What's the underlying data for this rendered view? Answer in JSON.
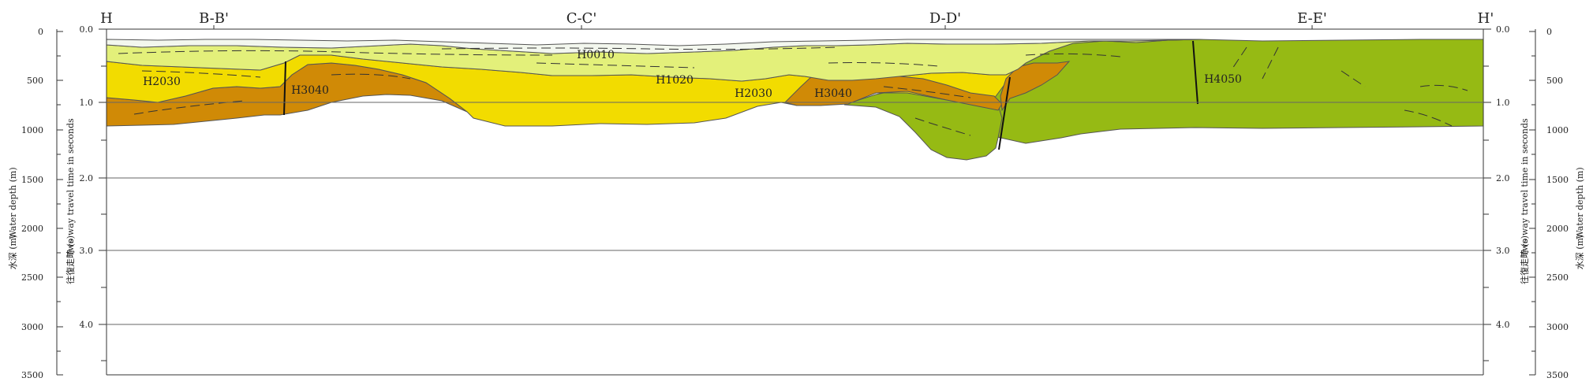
{
  "section": {
    "line_labels": [
      "H",
      "B-B'",
      "C-C'",
      "D-D'",
      "E-E'",
      "H'"
    ],
    "unit_labels": [
      "H0010",
      "H1020",
      "H2030",
      "H3040",
      "H2030",
      "H3040",
      "H4050"
    ],
    "left_axis_title_en": "Two way travel time in seconds",
    "left_axis_title_jp": "往復走時 (s)",
    "right_axis_title_en": "Two way travel time in seconds",
    "right_axis_title_jp": "往復走時 (s)",
    "depth_axis_title_en": "Water depth (m)",
    "depth_axis_title_jp": "水深 (m)",
    "depth_axis_title_right_en": "Water depth (m)",
    "depth_axis_title_right_jp": "水深 (m)",
    "tt_ticks": [
      "0.0",
      "1.0",
      "2.0",
      "3.0",
      "4.0"
    ],
    "depth_ticks": [
      "0",
      "500",
      "1000",
      "1500",
      "2000",
      "2500",
      "3000",
      "3500"
    ],
    "colors": {
      "H0010": "#f3f7ee",
      "H1020": "#e3f07a",
      "H2030": "#f2dc00",
      "H3040": "#d08a06",
      "H4050": "#96ba14"
    }
  }
}
